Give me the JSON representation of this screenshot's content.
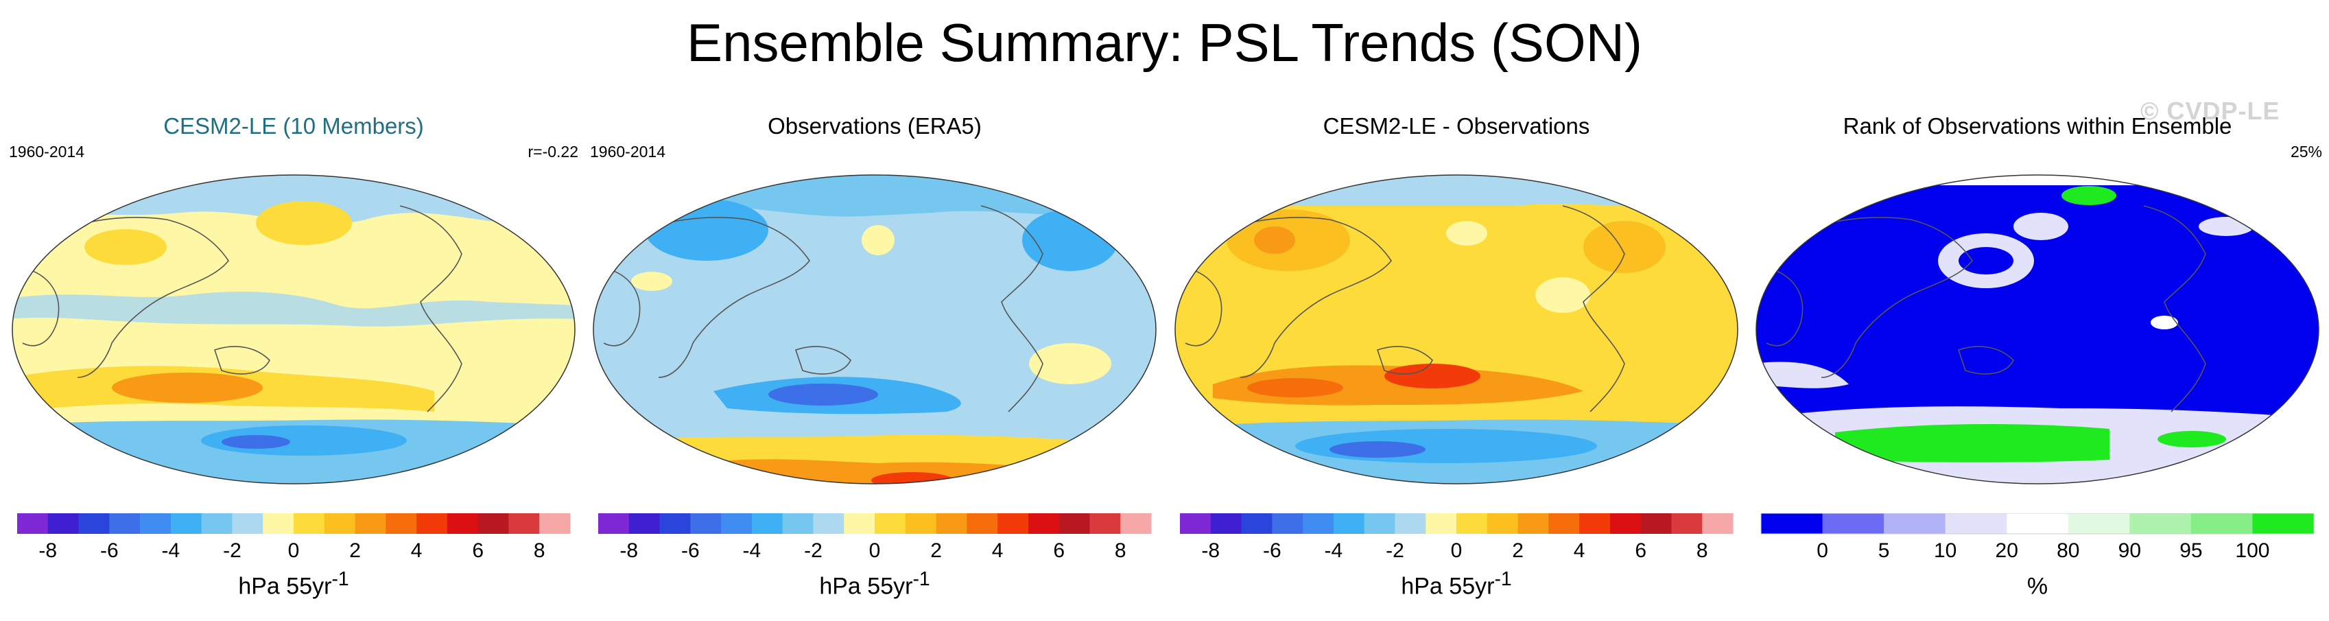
{
  "title": "Ensemble Summary: PSL Trends (SON)",
  "watermark": "© CVDP-LE",
  "colors": {
    "trend_palette": [
      "#7f29d6",
      "#3e1fd1",
      "#2b45dc",
      "#3d6fe8",
      "#3f8df0",
      "#3fb0f3",
      "#76c7f0",
      "#acd9ef",
      "#fdf7a6",
      "#fddb3a",
      "#fbbf1f",
      "#f89a16",
      "#f66e0b",
      "#f33b0a",
      "#dc0f12",
      "#b8181f",
      "#d83a3e",
      "#f6a8a8"
    ],
    "rank_palette": [
      "#0000ee",
      "#6b6bf4",
      "#b2b2f6",
      "#e2e2fa",
      "#ffffff",
      "#e2fae2",
      "#adf2ad",
      "#86ee86",
      "#1fe91f"
    ],
    "ocean_positive": "#fdf7a6",
    "ocean_negative": "#acd9ef",
    "coast": "#555555"
  },
  "chart_data": [
    {
      "type": "map",
      "title": "CESM2-LE (10 Members)",
      "left_label": "1960-2014",
      "right_label": "r=-0.22",
      "colorbar": {
        "type": "discrete",
        "ticks": [
          "-8",
          "-6",
          "-4",
          "-2",
          "0",
          "2",
          "4",
          "6",
          "8"
        ],
        "tick_values": [
          -8,
          -6,
          -4,
          -2,
          0,
          2,
          4,
          6,
          8
        ],
        "min": -9,
        "max": 9,
        "units_main": "hPa 55yr",
        "units_sup": "-1"
      }
    },
    {
      "type": "map",
      "title": "Observations (ERA5)",
      "left_label": "1960-2014",
      "right_label": "",
      "colorbar": {
        "type": "discrete",
        "ticks": [
          "-8",
          "-6",
          "-4",
          "-2",
          "0",
          "2",
          "4",
          "6",
          "8"
        ],
        "tick_values": [
          -8,
          -6,
          -4,
          -2,
          0,
          2,
          4,
          6,
          8
        ],
        "min": -9,
        "max": 9,
        "units_main": "hPa 55yr",
        "units_sup": "-1"
      }
    },
    {
      "type": "map",
      "title": "CESM2-LE - Observations",
      "left_label": "",
      "right_label": "",
      "colorbar": {
        "type": "discrete",
        "ticks": [
          "-8",
          "-6",
          "-4",
          "-2",
          "0",
          "2",
          "4",
          "6",
          "8"
        ],
        "tick_values": [
          -8,
          -6,
          -4,
          -2,
          0,
          2,
          4,
          6,
          8
        ],
        "min": -9,
        "max": 9,
        "units_main": "hPa 55yr",
        "units_sup": "-1"
      }
    },
    {
      "type": "map",
      "title": "Rank of Observations within Ensemble",
      "left_label": "",
      "right_label": "25%",
      "colorbar": {
        "type": "discrete-rank",
        "ticks": [
          "0",
          "5",
          "10",
          "20",
          "80",
          "90",
          "95",
          "100"
        ],
        "tick_boxes": [
          1,
          2,
          3,
          4,
          5,
          6,
          7,
          8
        ],
        "units_main": "%",
        "units_sup": ""
      }
    }
  ]
}
